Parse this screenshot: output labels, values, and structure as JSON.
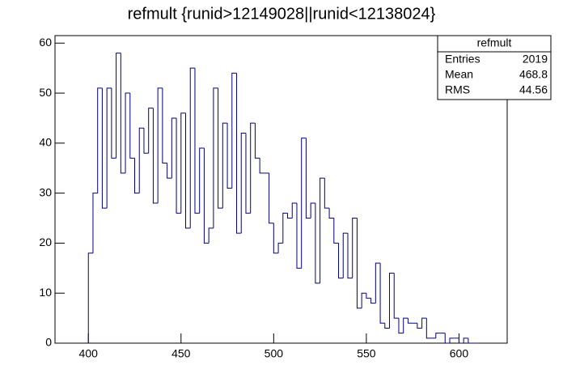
{
  "chart_data": {
    "type": "histogram",
    "title": "refmult {runid>12149028||runid<12138024}",
    "bins": [
      400,
      402.5,
      405,
      407.5,
      410,
      412.5,
      415,
      417.5,
      420,
      422.5,
      425,
      427.5,
      430,
      432.5,
      435,
      437.5,
      440,
      442.5,
      445,
      447.5,
      450,
      452.5,
      455,
      457.5,
      460,
      462.5,
      465,
      467.5,
      470,
      472.5,
      475,
      477.5,
      480,
      482.5,
      485,
      487.5,
      490,
      492.5,
      495,
      497.5,
      500,
      502.5,
      505,
      507.5,
      510,
      512.5,
      515,
      517.5,
      520,
      522.5,
      525,
      527.5,
      530,
      532.5,
      535,
      537.5,
      540,
      542.5,
      545,
      547.5,
      550,
      552.5,
      555,
      557.5,
      560,
      562.5,
      565,
      567.5,
      570,
      572.5,
      575,
      577.5,
      580,
      582.5,
      585,
      587.5,
      590,
      592.5,
      595,
      597.5,
      600,
      602.5,
      605,
      607.5,
      610
    ],
    "values": [
      18,
      30,
      51,
      27,
      51,
      37,
      58,
      34,
      50,
      37,
      30,
      43,
      38,
      47,
      28,
      51,
      36,
      33,
      45,
      26,
      46,
      23,
      55,
      26,
      39,
      20,
      23,
      51,
      27,
      44,
      31,
      54,
      22,
      42,
      26,
      44,
      37,
      34,
      34,
      24,
      18,
      20,
      26,
      25,
      28,
      15,
      41,
      25,
      28,
      12,
      33,
      27,
      25,
      20,
      13,
      22,
      13,
      25,
      7,
      10,
      9,
      8,
      16,
      4,
      3,
      14,
      5,
      2,
      5,
      4,
      4,
      3,
      5,
      1,
      1,
      2,
      2,
      0,
      1,
      1,
      0,
      1,
      0,
      0
    ],
    "color": "#000080",
    "xlim": [
      382,
      626
    ],
    "xticks": [
      400,
      450,
      500,
      550,
      600
    ],
    "ylim": [
      0,
      61.5
    ],
    "yticks": [
      0,
      10,
      20,
      30,
      40,
      50,
      60
    ],
    "stats": {
      "title": "refmult",
      "rows": [
        [
          "Entries",
          2019
        ],
        [
          "Mean",
          468.8
        ],
        [
          "RMS",
          44.56
        ]
      ]
    }
  }
}
